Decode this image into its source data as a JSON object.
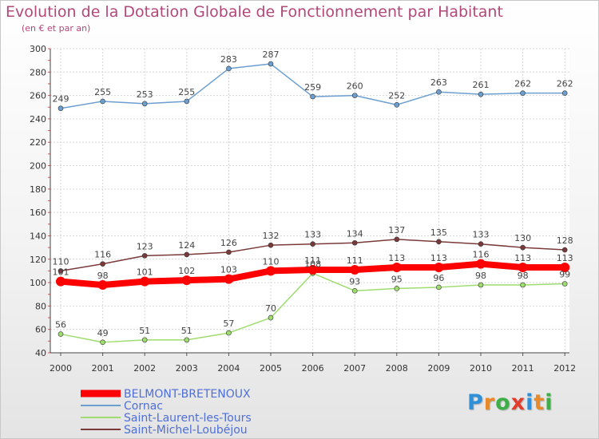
{
  "header": {
    "title": "Evolution de la Dotation Globale de Fonctionnement par Habitant",
    "subtitle": "(en € et par an)"
  },
  "logo": {
    "letters": [
      "P",
      "r",
      "o",
      "x",
      "i",
      "t",
      "i"
    ],
    "colors": [
      "#2f8fd8",
      "#e8892a",
      "#3fae49",
      "#e23c2c",
      "#2f8fd8",
      "#e8892a",
      "#3fae49"
    ]
  },
  "chart_data": {
    "type": "line",
    "x": [
      "2000",
      "2001",
      "2002",
      "2003",
      "2004",
      "2005",
      "2006",
      "2007",
      "2008",
      "2009",
      "2010",
      "2011",
      "2012"
    ],
    "ylim": [
      40,
      300
    ],
    "yticks": [
      40,
      60,
      80,
      100,
      120,
      140,
      160,
      180,
      200,
      220,
      240,
      260,
      280,
      300
    ],
    "grid": true,
    "legend_position": "bottom-left",
    "series": [
      {
        "name": "BELMONT-BRETENOUX",
        "color": "#ff0000",
        "emphasis": true,
        "values": [
          101,
          98,
          101,
          102,
          103,
          110,
          111,
          111,
          113,
          113,
          116,
          113,
          113
        ]
      },
      {
        "name": "Cornac",
        "color": "#6c9fd0",
        "values": [
          249,
          255,
          253,
          255,
          283,
          287,
          259,
          260,
          252,
          263,
          261,
          262,
          262
        ]
      },
      {
        "name": "Saint-Laurent-les-Tours",
        "color": "#9fdc6f",
        "values": [
          56,
          49,
          51,
          51,
          57,
          70,
          108,
          93,
          95,
          96,
          98,
          98,
          99
        ]
      },
      {
        "name": "Saint-Michel-Loubéjou",
        "color": "#7a3a3a",
        "values": [
          110,
          116,
          123,
          124,
          126,
          132,
          133,
          134,
          137,
          135,
          133,
          130,
          128
        ]
      }
    ]
  }
}
